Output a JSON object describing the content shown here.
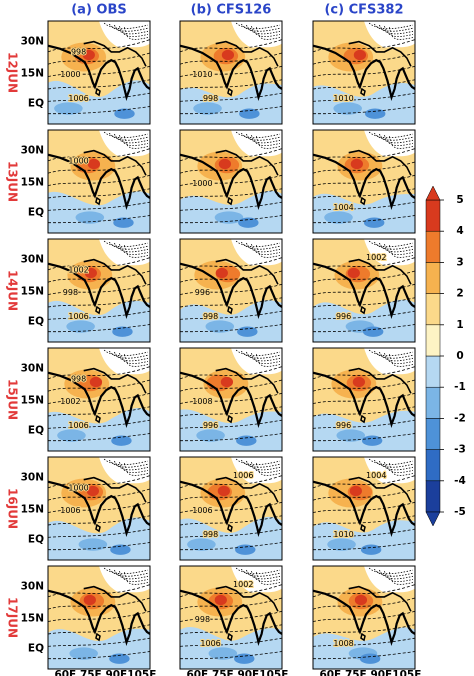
{
  "columns": [
    "(a) OBS",
    "(b) CFS126",
    "(c) CFS382"
  ],
  "rows": [
    {
      "label": "12JUN",
      "panels": [
        {
          "contour_labels": [
            "998",
            "1000",
            "1006"
          ]
        },
        {
          "contour_labels": [
            "1010",
            "998"
          ]
        },
        {
          "contour_labels": [
            "1010"
          ]
        }
      ]
    },
    {
      "label": "13JUN",
      "panels": [
        {
          "contour_labels": [
            "1000"
          ]
        },
        {
          "contour_labels": [
            "1000"
          ]
        },
        {
          "contour_labels": [
            "1004"
          ]
        }
      ]
    },
    {
      "label": "14JUN",
      "panels": [
        {
          "contour_labels": [
            "1002",
            "998",
            "1006"
          ]
        },
        {
          "contour_labels": [
            "996",
            "998"
          ]
        },
        {
          "contour_labels": [
            "996",
            "1002"
          ]
        }
      ]
    },
    {
      "label": "15JUN",
      "panels": [
        {
          "contour_labels": [
            "998",
            "1002",
            "1006"
          ]
        },
        {
          "contour_labels": [
            "1008",
            "996"
          ]
        },
        {
          "contour_labels": [
            "996"
          ]
        }
      ]
    },
    {
      "label": "16JUN",
      "panels": [
        {
          "contour_labels": [
            "1000",
            "1006"
          ]
        },
        {
          "contour_labels": [
            "1006",
            "998",
            "1006"
          ]
        },
        {
          "contour_labels": [
            "1010",
            "1004"
          ]
        }
      ]
    },
    {
      "label": "17JUN",
      "panels": [
        {
          "contour_labels": []
        },
        {
          "contour_labels": [
            "998",
            "1006",
            "1002"
          ]
        },
        {
          "contour_labels": [
            "1008"
          ]
        }
      ]
    }
  ],
  "lat_ticks": [
    "30N",
    "15N",
    "EQ"
  ],
  "lon_ticks": [
    "60E",
    "75E",
    "90E",
    "105E"
  ],
  "colorbar": {
    "lim": [
      -5,
      5
    ],
    "ticks": [
      -5,
      -4,
      -3,
      -2,
      -1,
      0,
      1,
      2,
      3,
      4,
      5
    ],
    "colors": [
      "#1b3f9c",
      "#2f6cc4",
      "#4e92d8",
      "#7bb5e6",
      "#b5d8f2",
      "#fdf3c4",
      "#fbd98a",
      "#f6b24f",
      "#ee7b2c",
      "#d83a1e"
    ]
  }
}
